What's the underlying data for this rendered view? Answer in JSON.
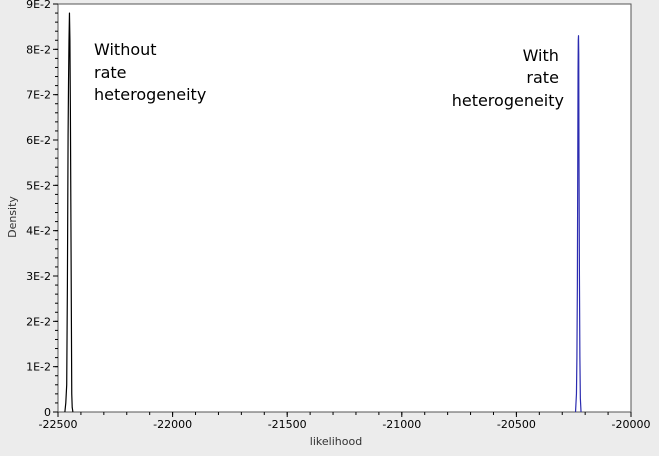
{
  "chart_data": {
    "type": "line",
    "xlabel": "likelihood",
    "ylabel": "Density",
    "xlim": [
      -22500,
      -20000
    ],
    "ylim": [
      0,
      0.09
    ],
    "x_ticks": [
      -22500,
      -22000,
      -21500,
      -21000,
      -20500,
      -20000
    ],
    "x_tick_labels": [
      "-22500",
      "-22000",
      "-21500",
      "-21000",
      "-20500",
      "-20000"
    ],
    "y_ticks": [
      0,
      0.01,
      0.02,
      0.03,
      0.04,
      0.05,
      0.06,
      0.07,
      0.08,
      0.09
    ],
    "y_tick_labels": [
      "0",
      "1E-2",
      "2E-2",
      "3E-2",
      "4E-2",
      "5E-2",
      "6E-2",
      "7E-2",
      "8E-2",
      "9E-2"
    ],
    "grid": false,
    "background": "#ffffff",
    "series": [
      {
        "color": "#000000",
        "x": [
          -22470,
          -22466,
          -22462,
          -22459,
          -22456,
          -22454,
          -22452,
          -22450,
          -22448,
          -22446,
          -22444,
          -22442,
          -22440,
          -22438,
          -22435
        ],
        "y": [
          0,
          0.002,
          0.006,
          0.028,
          0.061,
          0.073,
          0.082,
          0.088,
          0.082,
          0.067,
          0.046,
          0.025,
          0.004,
          0.001,
          0
        ]
      },
      {
        "color": "#2b2bb0",
        "x": [
          -20242,
          -20238,
          -20236,
          -20234,
          -20232,
          -20231,
          -20230,
          -20229,
          -20228,
          -20227,
          -20225,
          -20223,
          -20221,
          -20218
        ],
        "y": [
          0,
          0.004,
          0.012,
          0.028,
          0.06,
          0.075,
          0.082,
          0.083,
          0.079,
          0.057,
          0.03,
          0.012,
          0.003,
          0
        ]
      }
    ],
    "annotations": [
      {
        "id": "without",
        "lines": [
          "Without",
          "rate",
          "heterogeneity"
        ],
        "align": "left"
      },
      {
        "id": "with",
        "lines": [
          "With",
          "rate",
          "heterogeneity"
        ],
        "align": "right"
      }
    ]
  }
}
